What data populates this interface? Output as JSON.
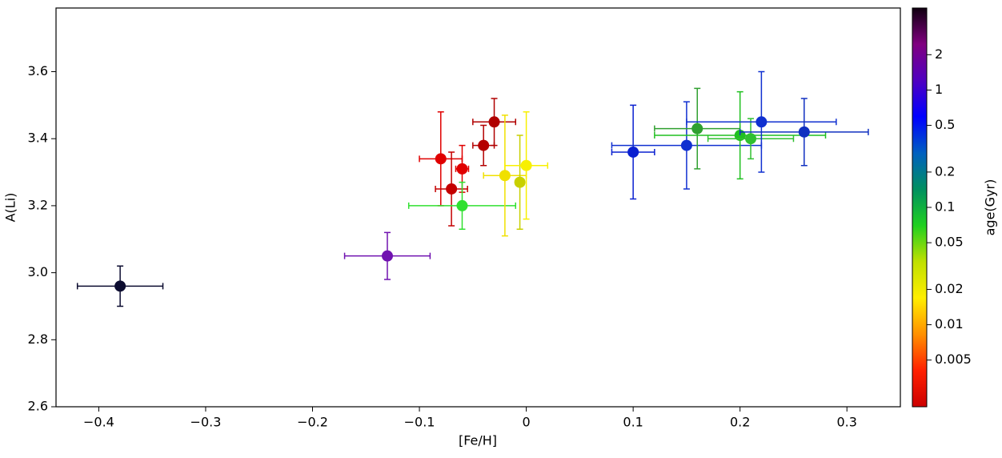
{
  "chart_data": {
    "type": "scatter",
    "x_label": "[Fe/H]",
    "y_label": "A(Li)",
    "xlim": [
      -0.44,
      0.35
    ],
    "ylim": [
      2.6,
      3.79
    ],
    "xticks": [
      {
        "value": -0.4,
        "label": "−0.4"
      },
      {
        "value": -0.3,
        "label": "−0.3"
      },
      {
        "value": -0.2,
        "label": "−0.2"
      },
      {
        "value": -0.1,
        "label": "−0.1"
      },
      0,
      0.1,
      0.2,
      0.3
    ],
    "yticks": [
      2.6,
      2.8,
      {
        "value": 3,
        "label": "3.0"
      },
      3.2,
      3.4,
      3.6
    ],
    "series": [
      {
        "x": [
          -0.38,
          -0.13,
          -0.08,
          -0.07,
          -0.06,
          -0.06,
          -0.04,
          -0.03,
          -0.02,
          -0.006,
          0.0,
          0.1,
          0.15,
          0.16,
          0.2,
          0.21,
          0.22,
          0.26
        ],
        "values": [
          2.96,
          3.05,
          3.34,
          3.25,
          3.31,
          3.2,
          3.38,
          3.45,
          3.29,
          3.27,
          3.32,
          3.36,
          3.38,
          3.43,
          3.41,
          3.4,
          3.45,
          3.42
        ],
        "xerr": [
          0.04,
          0.04,
          0.02,
          0.015,
          0.006,
          0.05,
          0.01,
          0.02,
          0.02,
          0.004,
          0.02,
          0.02,
          0.07,
          0.04,
          0.08,
          0.04,
          0.07,
          0.06
        ],
        "yerr": [
          0.06,
          0.07,
          0.14,
          0.11,
          0.07,
          0.07,
          0.06,
          0.07,
          0.18,
          0.14,
          0.16,
          0.14,
          0.13,
          0.12,
          0.13,
          0.06,
          0.15,
          0.1
        ],
        "colors": [
          "#0c0c30",
          "#7012b0",
          "#e00000",
          "#c40000",
          "#e00000",
          "#30e030",
          "#b40000",
          "#b00000",
          "#f0e000",
          "#c8d000",
          "#f8f000",
          "#0a20d0",
          "#1030d0",
          "#30a030",
          "#20c020",
          "#30c030",
          "#1030d0",
          "#1030c0"
        ]
      }
    ],
    "colorbar": {
      "label": "age(Gyr)",
      "scale": "log",
      "lim": [
        0.002,
        5
      ],
      "ticks": [
        0.005,
        0.01,
        0.02,
        0.05,
        0.1,
        0.2,
        0.5,
        1,
        2
      ],
      "colormap": [
        "#cc0000",
        "#ff2000",
        "#ff9000",
        "#ffee00",
        "#c0e000",
        "#20d020",
        "#009060",
        "#0060c0",
        "#0000ff",
        "#5000c0",
        "#800080",
        "#100010"
      ]
    }
  }
}
